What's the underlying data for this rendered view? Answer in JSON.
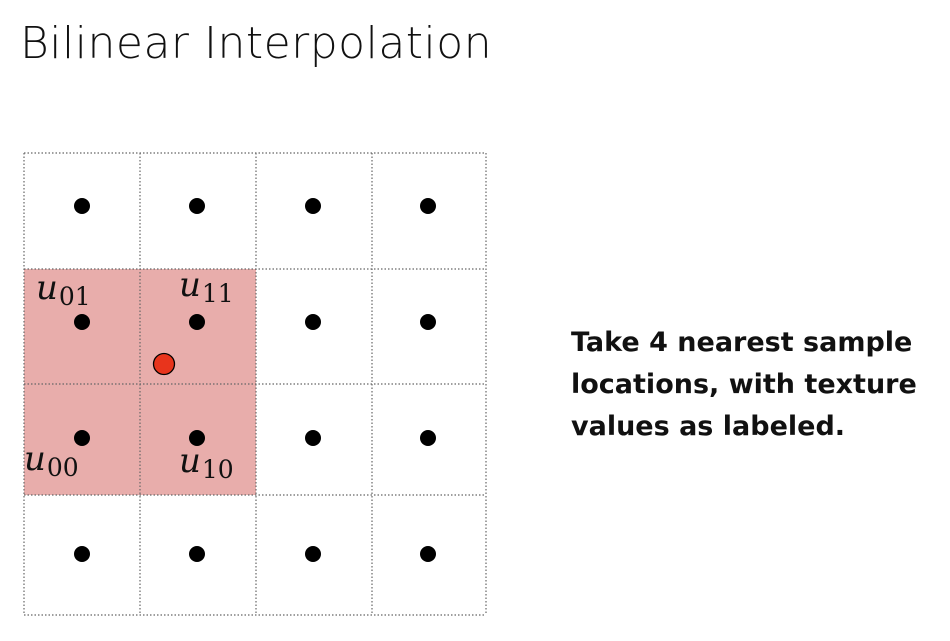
{
  "title": "Bilinear Interpolation",
  "grid": {
    "cols": 4,
    "rows": 4,
    "highlight_color": "#e8adab",
    "grid_line_color": "#666666",
    "sample_dot_color": "#000000",
    "query_point_color": "#e8341c"
  },
  "labels": {
    "u01": {
      "base": "u",
      "sub": "01"
    },
    "u11": {
      "base": "u",
      "sub": "11"
    },
    "u00": {
      "base": "u",
      "sub": "00"
    },
    "u10": {
      "base": "u",
      "sub": "10"
    }
  },
  "caption": [
    "Take 4 nearest sample",
    "locations, with texture",
    "values as labeled."
  ]
}
